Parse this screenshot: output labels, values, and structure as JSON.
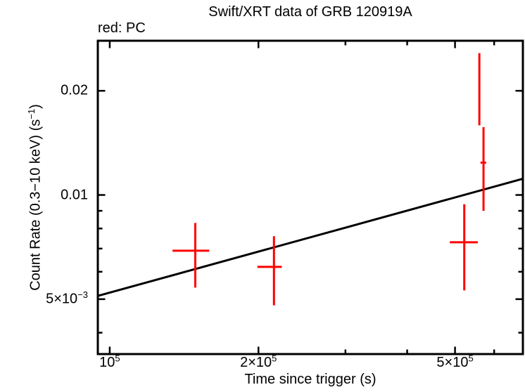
{
  "chart_data": {
    "type": "scatter",
    "title": "Swift/XRT data of GRB 120919A",
    "xlabel": "Time since trigger (s)",
    "ylabel": "Count Rate (0.3−10 keV) (s−1)",
    "ylabel_parts": [
      {
        "text": "Count Rate (0.3−10 keV) (s"
      },
      {
        "sup": "−1"
      },
      {
        "text": ")"
      }
    ],
    "legend": {
      "text": "red: PC",
      "position": "top-left",
      "series_color": "#ff0000"
    },
    "x_scale": "log",
    "y_scale": "log",
    "xlim": [
      94600,
      686000
    ],
    "ylim": [
      0.00347,
      0.0279
    ],
    "grid": false,
    "x_ticks": {
      "major": [
        {
          "v": 100000,
          "parts": [
            {
              "text": "10"
            },
            {
              "sup": "5"
            }
          ]
        },
        {
          "v": 200000,
          "parts": [
            {
              "text": "2×10"
            },
            {
              "sup": "5"
            }
          ]
        },
        {
          "v": 500000,
          "parts": [
            {
              "text": "5×10"
            },
            {
              "sup": "5"
            }
          ]
        }
      ],
      "minor": [
        300000,
        400000,
        600000
      ]
    },
    "y_ticks": {
      "major": [
        {
          "v": 0.02,
          "parts": [
            {
              "text": "0.02"
            }
          ]
        },
        {
          "v": 0.01,
          "parts": [
            {
              "text": "0.01"
            }
          ]
        },
        {
          "v": 0.005,
          "parts": [
            {
              "text": "5×10"
            },
            {
              "sup": "−3"
            }
          ]
        }
      ],
      "minor": [
        0.009,
        0.008,
        0.007,
        0.006,
        0.004
      ]
    },
    "series": [
      {
        "name": "PC mode",
        "color": "#ff0000",
        "points": [
          {
            "t": 149000,
            "t_lo": 134000,
            "t_hi": 159000,
            "rate": 0.0069,
            "rate_lo": 0.0054,
            "rate_hi": 0.0083
          },
          {
            "t": 215000,
            "t_lo": 199000,
            "t_hi": 223000,
            "rate": 0.0062,
            "rate_lo": 0.0048,
            "rate_hi": 0.0076
          },
          {
            "t": 522000,
            "t_lo": 488000,
            "t_hi": 556000,
            "rate": 0.0073,
            "rate_lo": 0.0053,
            "rate_hi": 0.0094
          },
          {
            "t": 571000,
            "t_lo": 563000,
            "t_hi": 578000,
            "rate": 0.0124,
            "rate_lo": 0.009,
            "rate_hi": 0.0157
          }
        ]
      }
    ],
    "partial_error_bar": {
      "t": 560000,
      "rate_lo": 0.0159,
      "rate_hi": 0.0257,
      "color": "#ff0000"
    },
    "model_line": {
      "color": "#000000",
      "points": [
        {
          "t": 94600,
          "rate": 0.00511
        },
        {
          "t": 686000,
          "rate": 0.01114
        }
      ]
    },
    "colors": {
      "data": "#ff0000",
      "model": "#000000",
      "frame": "#000000",
      "background": "#ffffff"
    }
  }
}
